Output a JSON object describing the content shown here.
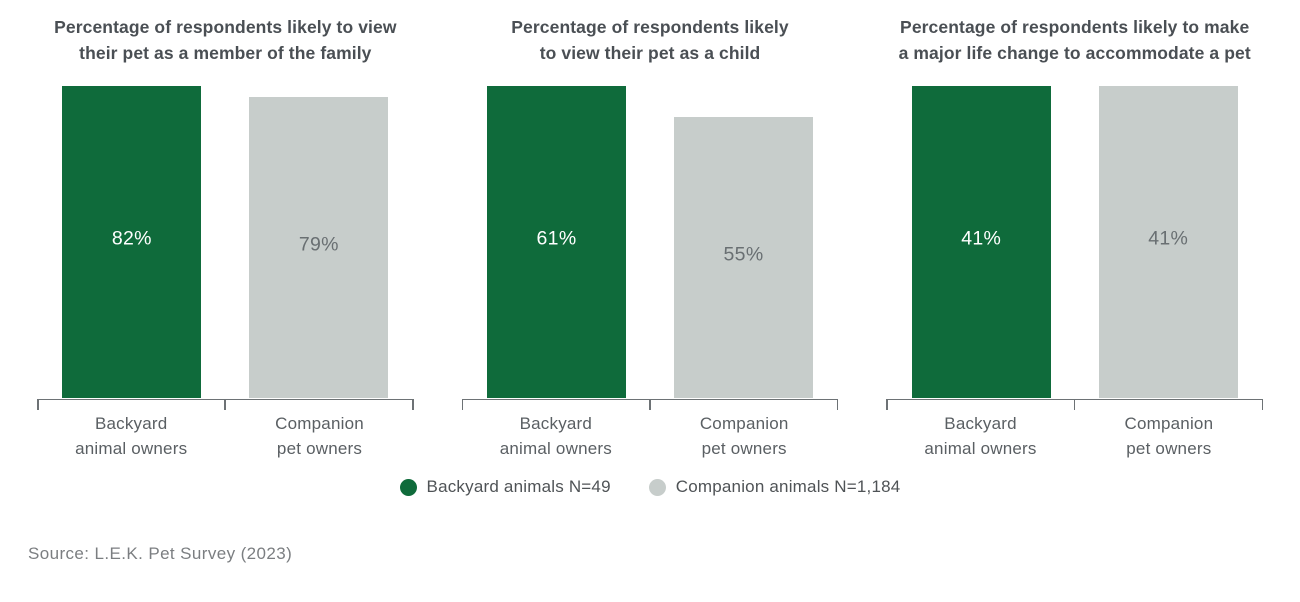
{
  "colors": {
    "background": "#ffffff",
    "series": [
      "#0f6b3b",
      "#c7cdcb"
    ],
    "value_labels": [
      "#ffffff",
      "#696f72"
    ],
    "axis_line": "#6d7275",
    "title_text": "#4a4f54",
    "category_text": "#5a5f63"
  },
  "chart_data": [
    {
      "type": "bar",
      "title": "Percentage of respondents likely to view\ntheir pet as a member of the family",
      "categories": [
        "Backyard\nanimal owners",
        "Companion\npet owners"
      ],
      "values": [
        82,
        79
      ],
      "value_labels": [
        "82%",
        "79%"
      ],
      "ylim": [
        0,
        82
      ],
      "scale": "bars-scaled-to-panel-max",
      "grid": false
    },
    {
      "type": "bar",
      "title": "Percentage of respondents likely\nto view their pet as a child",
      "categories": [
        "Backyard\nanimal owners",
        "Companion\npet owners"
      ],
      "values": [
        61,
        55
      ],
      "value_labels": [
        "61%",
        "55%"
      ],
      "ylim": [
        0,
        61
      ],
      "scale": "bars-scaled-to-panel-max",
      "grid": false
    },
    {
      "type": "bar",
      "title": "Percentage of respondents likely to make\na major life change to accommodate a pet",
      "categories": [
        "Backyard\nanimal owners",
        "Companion\npet owners"
      ],
      "values": [
        41,
        41
      ],
      "value_labels": [
        "41%",
        "41%"
      ],
      "ylim": [
        0,
        41
      ],
      "scale": "bars-scaled-to-panel-max",
      "grid": false
    }
  ],
  "legend": {
    "position": "bottom-center",
    "items": [
      {
        "label": "Backyard animals N=49",
        "color": "#0f6b3b"
      },
      {
        "label": "Companion animals N=1,184",
        "color": "#c7cdcb"
      }
    ]
  },
  "source": "Source: L.E.K. Pet Survey (2023)"
}
